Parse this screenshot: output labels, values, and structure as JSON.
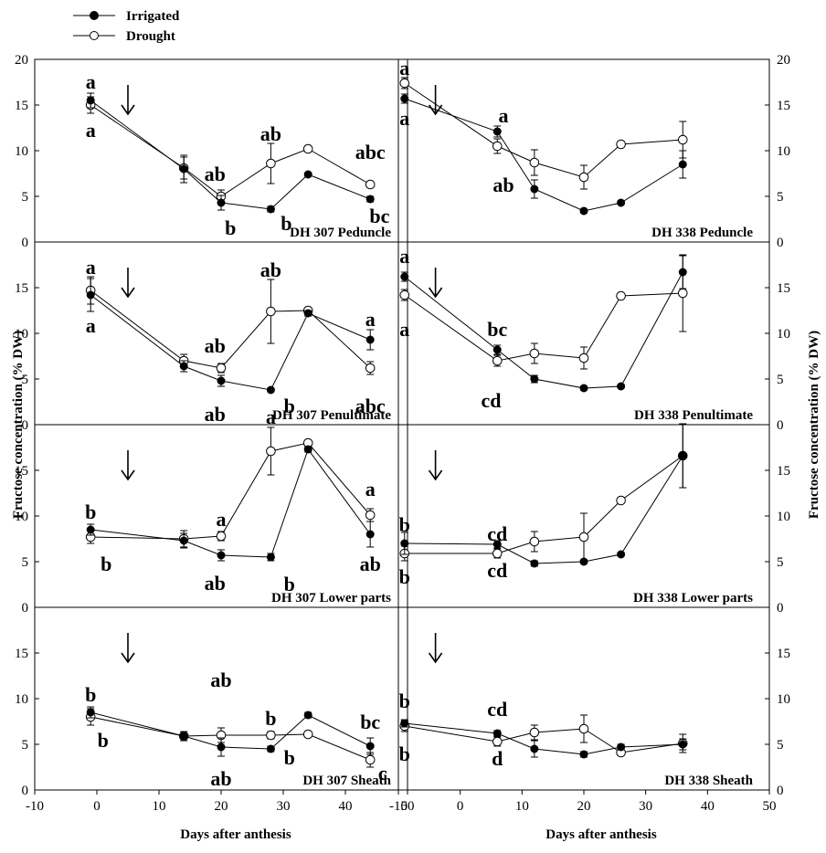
{
  "legend": [
    {
      "label": "Irrigated",
      "marker": "filled-circle"
    },
    {
      "label": "Drought",
      "marker": "open-circle"
    }
  ],
  "axes": {
    "xlabel_left": "Days after anthesis",
    "xlabel_right": "Days after anthesis",
    "ylabel_left": "Fructose concentration (% DW)",
    "ylabel_right": "Fructose concentration (% DW)",
    "x_ticks": [
      "-10",
      "0",
      "10",
      "20",
      "30",
      "40",
      "50"
    ],
    "y_ticks": [
      "0",
      "5",
      "10",
      "15",
      "20"
    ]
  },
  "colors": {
    "line": "#000000",
    "irrigated_fill": "#000000",
    "drought_fill": "#ffffff"
  },
  "chart_data": [
    {
      "type": "line",
      "title": "DH 307 Peduncle",
      "xlim": [
        -10,
        50
      ],
      "ylim": [
        0,
        20
      ],
      "drought_arrow_day": 5,
      "series": [
        {
          "name": "Irrigated",
          "x": [
            -1,
            14,
            20,
            28,
            34,
            44
          ],
          "y": [
            15.5,
            8.0,
            4.3,
            3.6,
            7.4,
            4.7
          ],
          "err": [
            0.8,
            1.5,
            0.8,
            0.3,
            0.2,
            0.3
          ]
        },
        {
          "name": "Drought",
          "x": [
            -1,
            14,
            20,
            28,
            34,
            44
          ],
          "y": [
            15.0,
            8.1,
            5.0,
            8.6,
            10.2,
            6.3
          ],
          "err": [
            0.9,
            1.2,
            0.7,
            2.2,
            0.3,
            0.3
          ]
        }
      ],
      "annotations": [
        {
          "text": "a",
          "x": -1,
          "y": 17.5
        },
        {
          "text": "a",
          "x": -1,
          "y": 12.2
        },
        {
          "text": "ab",
          "x": 19,
          "y": 7.4
        },
        {
          "text": "b",
          "x": 21.5,
          "y": 1.5
        },
        {
          "text": "ab",
          "x": 28,
          "y": 11.8
        },
        {
          "text": "b",
          "x": 30.5,
          "y": 2.0
        },
        {
          "text": "abc",
          "x": 44,
          "y": 9.8
        },
        {
          "text": "bc",
          "x": 45.5,
          "y": 2.8
        }
      ]
    },
    {
      "type": "line",
      "title": "DH 338 Peduncle",
      "xlim": [
        -10,
        50
      ],
      "ylim": [
        0,
        20
      ],
      "drought_arrow_day": -4,
      "series": [
        {
          "name": "Irrigated",
          "x": [
            -9,
            6,
            12,
            20,
            26,
            36
          ],
          "y": [
            15.7,
            12.1,
            5.8,
            3.4,
            4.3,
            8.5
          ],
          "err": [
            0.5,
            0.6,
            1.0,
            0.2,
            0.2,
            1.5
          ]
        },
        {
          "name": "Drought",
          "x": [
            -9,
            6,
            12,
            20,
            26,
            36
          ],
          "y": [
            17.4,
            10.5,
            8.7,
            7.1,
            10.7,
            11.2
          ],
          "err": [
            0.6,
            0.8,
            1.4,
            1.3,
            0.2,
            2.0
          ]
        }
      ],
      "annotations": [
        {
          "text": "a",
          "x": -9,
          "y": 19.0
        },
        {
          "text": "a",
          "x": -9,
          "y": 13.5
        },
        {
          "text": "a",
          "x": 7,
          "y": 13.8
        },
        {
          "text": "ab",
          "x": 7,
          "y": 6.2
        }
      ]
    },
    {
      "type": "line",
      "title": "DH 307 Penultimate",
      "xlim": [
        -10,
        50
      ],
      "ylim": [
        0,
        20
      ],
      "drought_arrow_day": 5,
      "series": [
        {
          "name": "Irrigated",
          "x": [
            -1,
            14,
            20,
            28,
            34,
            44
          ],
          "y": [
            14.2,
            6.4,
            4.8,
            3.8,
            12.2,
            9.3
          ],
          "err": [
            1.8,
            0.6,
            0.6,
            0.2,
            0.3,
            1.1
          ]
        },
        {
          "name": "Drought",
          "x": [
            -1,
            14,
            20,
            28,
            34,
            44
          ],
          "y": [
            14.7,
            7.0,
            6.2,
            12.4,
            12.5,
            6.2
          ],
          "err": [
            1.5,
            0.7,
            0.5,
            3.5,
            0.3,
            0.7
          ]
        }
      ],
      "annotations": [
        {
          "text": "a",
          "x": -1,
          "y": 17.2
        },
        {
          "text": "a",
          "x": -1,
          "y": 10.8
        },
        {
          "text": "ab",
          "x": 19,
          "y": 8.6
        },
        {
          "text": "ab",
          "x": 19,
          "y": 1.1
        },
        {
          "text": "ab",
          "x": 28,
          "y": 16.9
        },
        {
          "text": "b",
          "x": 31,
          "y": 2.0
        },
        {
          "text": "a",
          "x": 44,
          "y": 11.5
        },
        {
          "text": "abc",
          "x": 44,
          "y": 2.0
        }
      ]
    },
    {
      "type": "line",
      "title": "DH 338 Penultimate",
      "xlim": [
        -10,
        50
      ],
      "ylim": [
        0,
        20
      ],
      "drought_arrow_day": -4,
      "series": [
        {
          "name": "Irrigated",
          "x": [
            -9,
            6,
            12,
            20,
            26,
            36
          ],
          "y": [
            16.2,
            8.2,
            5.0,
            4.0,
            4.2,
            16.7
          ],
          "err": [
            0.5,
            0.5,
            0.4,
            0.2,
            0.2,
            1.8
          ]
        },
        {
          "name": "Drought",
          "x": [
            -9,
            6,
            12,
            20,
            26,
            36
          ],
          "y": [
            14.2,
            7.0,
            7.8,
            7.3,
            14.1,
            14.4
          ],
          "err": [
            0.6,
            0.6,
            1.1,
            1.2,
            0.2,
            4.2
          ]
        }
      ],
      "annotations": [
        {
          "text": "a",
          "x": -9,
          "y": 18.4
        },
        {
          "text": "a",
          "x": -9,
          "y": 10.4
        },
        {
          "text": "bc",
          "x": 6,
          "y": 10.4
        },
        {
          "text": "cd",
          "x": 5,
          "y": 2.6
        }
      ]
    },
    {
      "type": "line",
      "title": "DH 307 Lower parts",
      "xlim": [
        -10,
        50
      ],
      "ylim": [
        0,
        20
      ],
      "drought_arrow_day": 5,
      "series": [
        {
          "name": "Irrigated",
          "x": [
            -1,
            14,
            20,
            28,
            34,
            44
          ],
          "y": [
            8.5,
            7.3,
            5.7,
            5.5,
            17.3,
            8.0
          ],
          "err": [
            0.6,
            0.8,
            0.6,
            0.4,
            0.3,
            1.4
          ]
        },
        {
          "name": "Drought",
          "x": [
            -1,
            14,
            20,
            28,
            34,
            44
          ],
          "y": [
            7.7,
            7.5,
            7.8,
            17.1,
            18.0,
            10.1
          ],
          "err": [
            0.7,
            0.9,
            0.5,
            2.6,
            0.2,
            0.7
          ]
        }
      ],
      "annotations": [
        {
          "text": "b",
          "x": -1,
          "y": 10.4
        },
        {
          "text": "b",
          "x": 1.5,
          "y": 4.7
        },
        {
          "text": "a",
          "x": 20,
          "y": 9.6
        },
        {
          "text": "ab",
          "x": 19,
          "y": 2.6
        },
        {
          "text": "a",
          "x": 28,
          "y": 20.8
        },
        {
          "text": "b",
          "x": 31,
          "y": 2.5
        },
        {
          "text": "a",
          "x": 44,
          "y": 12.9
        },
        {
          "text": "ab",
          "x": 44,
          "y": 4.7
        }
      ]
    },
    {
      "type": "line",
      "title": "DH 338 Lower parts",
      "xlim": [
        -10,
        50
      ],
      "ylim": [
        0,
        20
      ],
      "drought_arrow_day": -4,
      "series": [
        {
          "name": "Irrigated",
          "x": [
            -9,
            6,
            12,
            20,
            26,
            36
          ],
          "y": [
            7.0,
            6.9,
            4.8,
            5.0,
            5.8,
            16.6
          ],
          "err": [
            1.2,
            0.4,
            0.3,
            0.2,
            0.2,
            3.5
          ]
        },
        {
          "name": "Drought",
          "x": [
            -9,
            6,
            12,
            20,
            26,
            36
          ],
          "y": [
            5.9,
            5.9,
            7.2,
            7.7,
            11.7,
            16.6
          ],
          "err": [
            0.8,
            0.5,
            1.1,
            2.6,
            0.2,
            3.5
          ]
        }
      ],
      "annotations": [
        {
          "text": "b",
          "x": -9,
          "y": 9.0
        },
        {
          "text": "b",
          "x": -9,
          "y": 3.3
        },
        {
          "text": "cd",
          "x": 6,
          "y": 8.0
        },
        {
          "text": "cd",
          "x": 6,
          "y": 4.0
        }
      ]
    },
    {
      "type": "line",
      "title": "DH 307 Sheath",
      "xlim": [
        -10,
        50
      ],
      "ylim": [
        0,
        20
      ],
      "drought_arrow_day": 5,
      "series": [
        {
          "name": "Irrigated",
          "x": [
            -1,
            14,
            20,
            28,
            34,
            44
          ],
          "y": [
            8.5,
            5.9,
            4.7,
            4.5,
            8.2,
            4.8
          ],
          "err": [
            0.6,
            0.5,
            1.0,
            0.3,
            0.3,
            0.9
          ]
        },
        {
          "name": "Drought",
          "x": [
            -1,
            14,
            20,
            28,
            34,
            44
          ],
          "y": [
            8.0,
            5.9,
            6.0,
            6.0,
            6.1,
            3.3
          ],
          "err": [
            0.9,
            0.5,
            0.8,
            0.4,
            0.3,
            0.8
          ]
        }
      ],
      "annotations": [
        {
          "text": "b",
          "x": -1,
          "y": 10.4
        },
        {
          "text": "b",
          "x": 1,
          "y": 5.4
        },
        {
          "text": "ab",
          "x": 20,
          "y": 12.0
        },
        {
          "text": "ab",
          "x": 20,
          "y": 1.2
        },
        {
          "text": "b",
          "x": 28,
          "y": 7.8
        },
        {
          "text": "b",
          "x": 31,
          "y": 3.5
        },
        {
          "text": "bc",
          "x": 44,
          "y": 7.4
        },
        {
          "text": "c",
          "x": 46,
          "y": 1.8
        }
      ]
    },
    {
      "type": "line",
      "title": "DH 338 Sheath",
      "xlim": [
        -10,
        50
      ],
      "ylim": [
        0,
        20
      ],
      "drought_arrow_day": -4,
      "series": [
        {
          "name": "Irrigated",
          "x": [
            -9,
            6,
            12,
            20,
            26,
            36
          ],
          "y": [
            7.3,
            6.2,
            4.5,
            3.9,
            4.7,
            5.0
          ],
          "err": [
            0.4,
            0.3,
            0.9,
            0.3,
            0.3,
            0.6
          ]
        },
        {
          "name": "Drought",
          "x": [
            -9,
            6,
            12,
            20,
            26,
            36
          ],
          "y": [
            7.0,
            5.3,
            6.3,
            6.7,
            4.1,
            5.1
          ],
          "err": [
            0.6,
            0.5,
            0.8,
            1.5,
            0.2,
            1.0
          ]
        }
      ],
      "annotations": [
        {
          "text": "b",
          "x": -9,
          "y": 9.7
        },
        {
          "text": "b",
          "x": -9,
          "y": 3.9
        },
        {
          "text": "cd",
          "x": 6,
          "y": 8.8
        },
        {
          "text": "d",
          "x": 6,
          "y": 3.4
        }
      ]
    }
  ]
}
